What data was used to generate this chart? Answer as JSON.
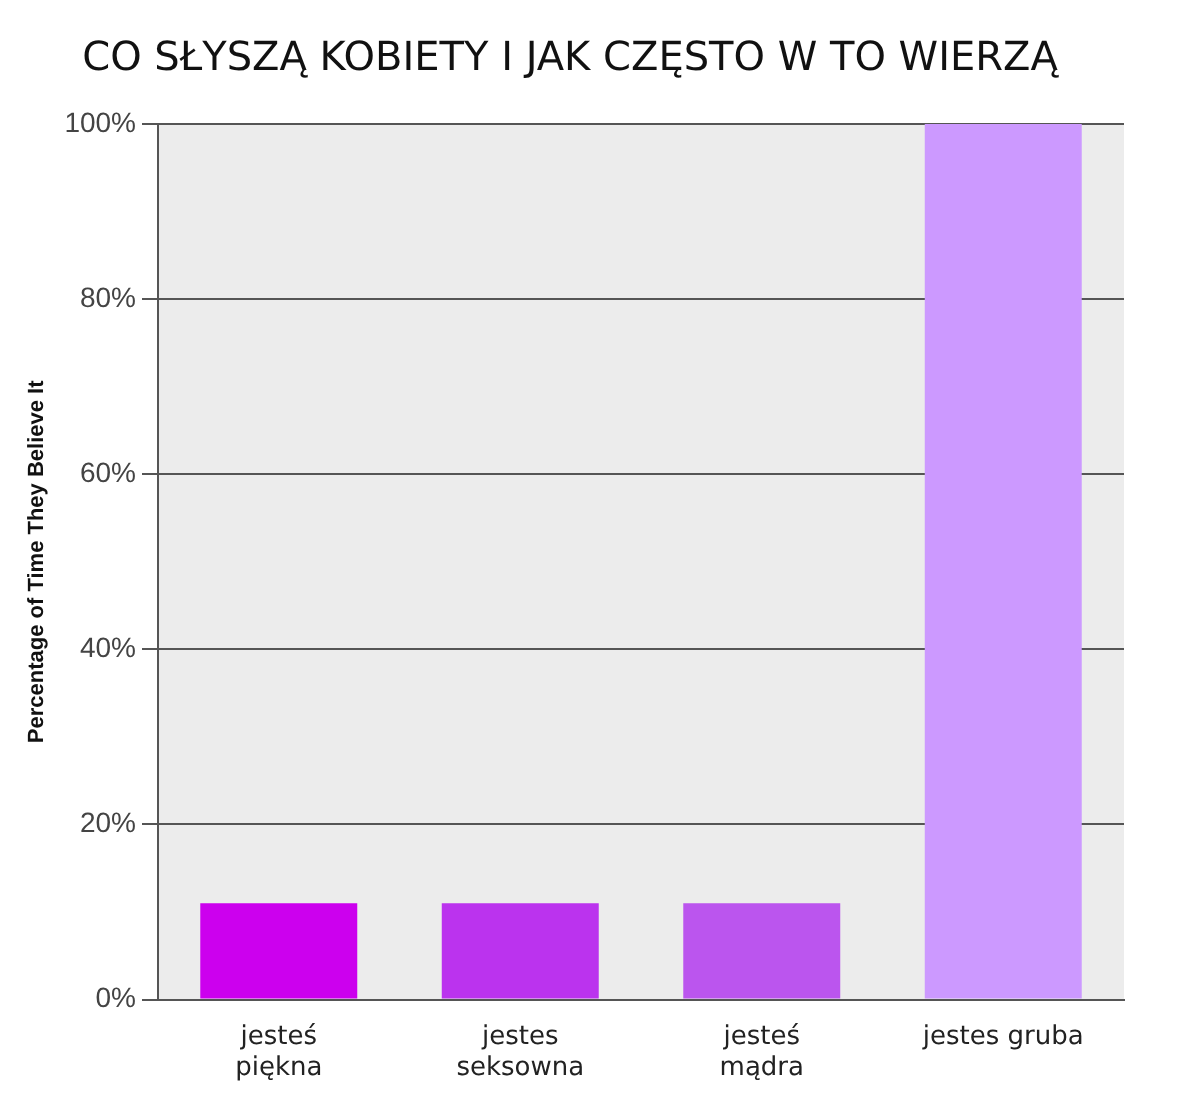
{
  "chart_data": {
    "type": "bar",
    "title": "CO SŁYSZĄ KOBIETY I JAK CZĘSTO W TO WIERZĄ",
    "ylabel": "Percentage of Time They Believe It",
    "categories": [
      "jesteś\npiękna",
      "jestes\nseksowna",
      "jesteś\nmądra",
      "jestes gruba"
    ],
    "values": [
      11,
      11,
      11,
      100
    ],
    "colors": [
      "#cc00ee",
      "#bb33ee",
      "#bb55ee",
      "#cc99ff"
    ],
    "ylim": [
      0,
      100
    ],
    "yticks": [
      {
        "value": 0,
        "label": "0%"
      },
      {
        "value": 20,
        "label": "20%"
      },
      {
        "value": 40,
        "label": "40%"
      },
      {
        "value": 60,
        "label": "60%"
      },
      {
        "value": 80,
        "label": "80%"
      },
      {
        "value": 100,
        "label": "100%"
      }
    ],
    "grid": "y"
  }
}
